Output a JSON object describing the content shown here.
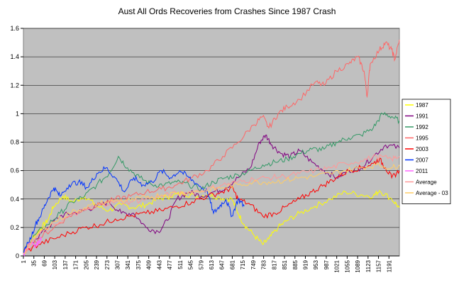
{
  "chart_data": {
    "type": "line",
    "title": "Aust All Ords Recoveries from Crashes Since 1987 Crash",
    "xlabel": "",
    "ylabel": "",
    "xlim": [
      1,
      1225
    ],
    "ylim": [
      0,
      1.6
    ],
    "y_ticks": [
      0,
      0.2,
      0.4,
      0.6,
      0.8,
      1,
      1.2,
      1.4,
      1.6
    ],
    "y_tick_labels": [
      "0",
      "0.2",
      "0.4",
      "0.6",
      "0.8",
      "1",
      "1.2",
      "1.4",
      "1.6"
    ],
    "x_tick_labels": [
      "1",
      "35",
      "69",
      "103",
      "137",
      "171",
      "205",
      "239",
      "273",
      "307",
      "341",
      "375",
      "409",
      "443",
      "477",
      "511",
      "545",
      "579",
      "613",
      "647",
      "681",
      "715",
      "749",
      "783",
      "817",
      "851",
      "885",
      "919",
      "953",
      "987",
      "1021",
      "1055",
      "1089",
      "1123",
      "1157",
      "1191"
    ],
    "x_tick_values": [
      1,
      35,
      69,
      103,
      137,
      171,
      205,
      239,
      273,
      307,
      341,
      375,
      409,
      443,
      477,
      511,
      545,
      579,
      613,
      647,
      681,
      715,
      749,
      783,
      817,
      851,
      885,
      919,
      953,
      987,
      1021,
      1055,
      1089,
      1123,
      1157,
      1191
    ],
    "grid": true,
    "plot_background": "#c0c0c0",
    "legend_position": "right",
    "series": [
      {
        "name": "1987",
        "color": "#ffff00",
        "x": [
          1,
          20,
          40,
          60,
          80,
          100,
          130,
          160,
          200,
          240,
          280,
          320,
          360,
          400,
          440,
          480,
          520,
          560,
          600,
          640,
          680,
          700,
          720,
          750,
          780,
          800,
          830,
          860,
          900,
          950,
          1000,
          1050,
          1100,
          1140,
          1160,
          1200,
          1225
        ],
        "y": [
          0.02,
          0.1,
          0.15,
          0.2,
          0.25,
          0.35,
          0.42,
          0.38,
          0.42,
          0.35,
          0.32,
          0.36,
          0.34,
          0.36,
          0.4,
          0.42,
          0.44,
          0.42,
          0.43,
          0.41,
          0.4,
          0.3,
          0.22,
          0.15,
          0.08,
          0.12,
          0.2,
          0.25,
          0.3,
          0.35,
          0.4,
          0.45,
          0.43,
          0.42,
          0.46,
          0.4,
          0.34
        ]
      },
      {
        "name": "1991",
        "color": "#800080",
        "x": [
          1,
          40,
          80,
          120,
          160,
          200,
          240,
          280,
          320,
          360,
          400,
          440,
          470,
          500,
          540,
          580,
          620,
          660,
          700,
          740,
          770,
          790,
          810,
          840,
          870,
          900,
          940,
          980,
          1020,
          1060,
          1100,
          1140,
          1180,
          1225
        ],
        "y": [
          0.03,
          0.12,
          0.2,
          0.28,
          0.3,
          0.32,
          0.35,
          0.38,
          0.3,
          0.3,
          0.2,
          0.17,
          0.25,
          0.4,
          0.45,
          0.42,
          0.45,
          0.48,
          0.55,
          0.62,
          0.8,
          0.85,
          0.78,
          0.72,
          0.7,
          0.74,
          0.66,
          0.6,
          0.55,
          0.6,
          0.62,
          0.7,
          0.78,
          0.76
        ]
      },
      {
        "name": "1992",
        "color": "#339966",
        "x": [
          1,
          40,
          80,
          120,
          160,
          200,
          240,
          280,
          310,
          340,
          380,
          420,
          460,
          500,
          540,
          580,
          620,
          660,
          700,
          740,
          780,
          820,
          860,
          900,
          940,
          980,
          1020,
          1060,
          1100,
          1140,
          1170,
          1200,
          1225
        ],
        "y": [
          0.03,
          0.15,
          0.22,
          0.3,
          0.38,
          0.42,
          0.5,
          0.58,
          0.7,
          0.62,
          0.55,
          0.5,
          0.5,
          0.52,
          0.5,
          0.47,
          0.52,
          0.55,
          0.57,
          0.6,
          0.64,
          0.66,
          0.68,
          0.72,
          0.75,
          0.75,
          0.8,
          0.83,
          0.85,
          0.9,
          1.0,
          0.98,
          0.95
        ]
      },
      {
        "name": "1995",
        "color": "#ff6666",
        "x": [
          1,
          50,
          100,
          150,
          200,
          250,
          300,
          350,
          400,
          450,
          500,
          550,
          600,
          650,
          700,
          750,
          780,
          800,
          830,
          860,
          900,
          950,
          980,
          1020,
          1060,
          1090,
          1110,
          1120,
          1130,
          1160,
          1180,
          1200,
          1210,
          1225
        ],
        "y": [
          0.02,
          0.12,
          0.2,
          0.28,
          0.33,
          0.36,
          0.4,
          0.42,
          0.45,
          0.47,
          0.5,
          0.55,
          0.6,
          0.7,
          0.8,
          0.92,
          0.98,
          0.9,
          1.0,
          1.05,
          1.1,
          1.22,
          1.2,
          1.3,
          1.35,
          1.4,
          1.3,
          1.12,
          1.35,
          1.45,
          1.5,
          1.45,
          1.38,
          1.52
        ]
      },
      {
        "name": "2003",
        "color": "#ff0000",
        "x": [
          1,
          50,
          100,
          150,
          200,
          250,
          300,
          350,
          400,
          450,
          500,
          550,
          600,
          650,
          680,
          700,
          740,
          780,
          820,
          860,
          900,
          940,
          980,
          1020,
          1060,
          1100,
          1140,
          1160,
          1180,
          1200,
          1225
        ],
        "y": [
          0.02,
          0.08,
          0.12,
          0.16,
          0.2,
          0.22,
          0.26,
          0.28,
          0.3,
          0.32,
          0.35,
          0.38,
          0.42,
          0.45,
          0.48,
          0.4,
          0.36,
          0.28,
          0.3,
          0.35,
          0.4,
          0.45,
          0.5,
          0.55,
          0.6,
          0.62,
          0.65,
          0.68,
          0.62,
          0.55,
          0.6
        ]
      },
      {
        "name": "2007",
        "color": "#0033ff",
        "x": [
          1,
          20,
          40,
          60,
          80,
          100,
          120,
          150,
          180,
          210,
          240,
          270,
          300,
          330,
          360,
          390,
          420,
          450,
          480,
          510,
          540,
          570,
          600,
          620,
          640,
          660,
          680,
          700,
          720
        ],
        "y": [
          0.03,
          0.1,
          0.22,
          0.3,
          0.4,
          0.48,
          0.42,
          0.5,
          0.52,
          0.48,
          0.58,
          0.62,
          0.55,
          0.45,
          0.55,
          0.5,
          0.52,
          0.6,
          0.55,
          0.6,
          0.55,
          0.5,
          0.45,
          0.3,
          0.35,
          0.4,
          0.28,
          0.4,
          0.35
        ]
      },
      {
        "name": "2011",
        "color": "#ff66ff",
        "x": [
          1,
          10,
          20,
          30,
          40,
          50,
          60
        ],
        "y": [
          0.01,
          0.04,
          0.08,
          0.1,
          0.07,
          0.1,
          0.12
        ]
      },
      {
        "name": "Average",
        "color": "#ff9999",
        "x": [
          1,
          50,
          100,
          150,
          200,
          250,
          300,
          350,
          400,
          450,
          500,
          550,
          600,
          650,
          700,
          750,
          800,
          850,
          900,
          950,
          1000,
          1050,
          1100,
          1150,
          1200,
          1225
        ],
        "y": [
          0.02,
          0.15,
          0.22,
          0.28,
          0.32,
          0.36,
          0.38,
          0.38,
          0.4,
          0.42,
          0.44,
          0.45,
          0.47,
          0.5,
          0.52,
          0.54,
          0.55,
          0.56,
          0.58,
          0.6,
          0.62,
          0.65,
          0.67,
          0.7,
          0.68,
          0.7
        ]
      },
      {
        "name": "Average - 03",
        "color": "#ffcc66",
        "x": [
          1,
          50,
          100,
          150,
          200,
          250,
          300,
          350,
          400,
          450,
          500,
          550,
          600,
          650,
          700,
          750,
          800,
          850,
          900,
          950,
          1000,
          1050,
          1100,
          1150,
          1200,
          1225
        ],
        "y": [
          0.02,
          0.16,
          0.24,
          0.3,
          0.34,
          0.37,
          0.39,
          0.39,
          0.41,
          0.43,
          0.44,
          0.45,
          0.46,
          0.48,
          0.5,
          0.52,
          0.52,
          0.53,
          0.55,
          0.56,
          0.58,
          0.6,
          0.62,
          0.64,
          0.62,
          0.64
        ]
      }
    ]
  }
}
